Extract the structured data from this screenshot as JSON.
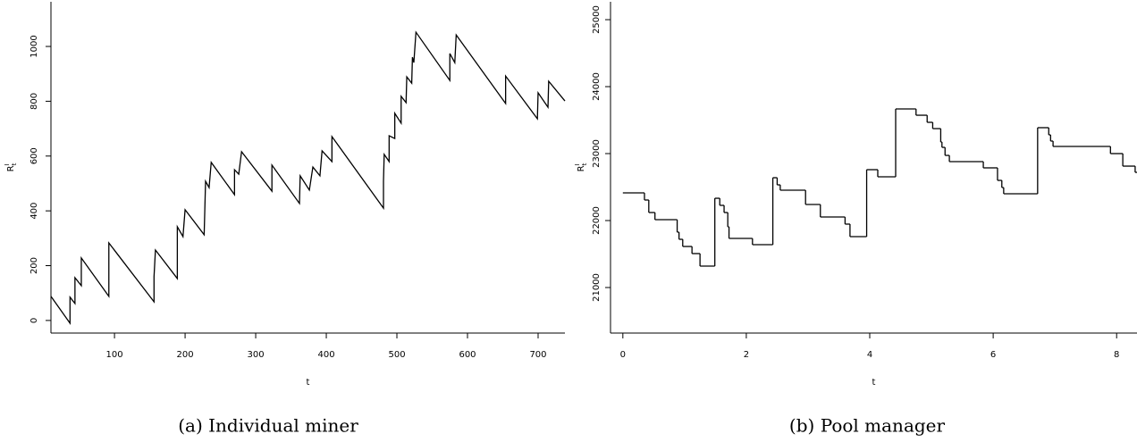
{
  "chart_data": [
    {
      "type": "line",
      "caption": "(a) Individual miner",
      "xlabel": "t",
      "ylabel": "R",
      "ylabel_sup": "I",
      "ylabel_sub": "t",
      "xlim": [
        10,
        738
      ],
      "ylim": [
        -46,
        1163
      ],
      "xticks": [
        100,
        200,
        300,
        400,
        500,
        600,
        700
      ],
      "yticks": [
        0,
        200,
        400,
        600,
        800,
        1000
      ],
      "color": "#000000",
      "x": [
        10,
        37,
        37,
        44,
        44,
        53,
        53,
        92,
        92,
        156,
        156,
        158,
        189,
        189,
        197,
        200,
        227,
        229,
        234,
        237,
        270,
        270,
        276,
        280,
        323,
        323,
        362,
        363,
        376,
        381,
        391,
        394,
        408,
        408,
        481,
        481,
        482,
        489,
        489,
        497,
        497,
        506,
        506,
        513,
        514,
        521,
        522,
        524,
        527,
        575,
        575,
        582,
        584,
        654,
        654,
        699,
        700,
        714,
        715,
        738
      ],
      "values": [
        88,
        -10,
        85,
        62,
        156,
        127,
        228,
        88,
        283,
        68,
        160,
        257,
        153,
        342,
        306,
        404,
        313,
        508,
        485,
        577,
        459,
        550,
        534,
        616,
        472,
        567,
        427,
        528,
        476,
        560,
        528,
        619,
        580,
        671,
        410,
        508,
        606,
        580,
        674,
        664,
        756,
        720,
        818,
        795,
        889,
        866,
        961,
        941,
        1052,
        876,
        974,
        941,
        1042,
        792,
        892,
        736,
        831,
        778,
        873,
        801
      ]
    },
    {
      "type": "step",
      "caption": "(b) Pool manager",
      "xlabel": "t",
      "ylabel": "R",
      "ylabel_sup": "I",
      "ylabel_sub": "t",
      "xlim": [
        -0.2,
        8.33
      ],
      "ylim": [
        20320,
        25267
      ],
      "xticks": [
        0,
        2,
        4,
        6,
        8
      ],
      "yticks": [
        21000,
        22000,
        23000,
        24000,
        25000
      ],
      "color": "#000000",
      "x": [
        0,
        0.35,
        0.42,
        0.52,
        0.88,
        0.91,
        0.97,
        1.12,
        1.25,
        1.49,
        1.57,
        1.64,
        1.7,
        1.72,
        2.1,
        2.43,
        2.5,
        2.55,
        2.96,
        3.2,
        3.6,
        3.68,
        3.95,
        4.13,
        4.42,
        4.75,
        4.93,
        5.02,
        5.15,
        5.17,
        5.22,
        5.29,
        5.84,
        6.07,
        6.14,
        6.17,
        6.72,
        6.9,
        6.93,
        6.97,
        7.9,
        8.1,
        8.3,
        8.33
      ],
      "values": [
        22413,
        22307,
        22120,
        22013,
        21827,
        21720,
        21613,
        21507,
        21320,
        22333,
        22227,
        22120,
        21907,
        21733,
        21640,
        22640,
        22533,
        22453,
        22240,
        22053,
        21947,
        21760,
        22760,
        22653,
        23667,
        23573,
        23467,
        23373,
        23173,
        23093,
        22973,
        22880,
        22787,
        22600,
        22493,
        22400,
        23387,
        23280,
        23187,
        23107,
        23000,
        22813,
        22720,
        22720
      ]
    }
  ]
}
